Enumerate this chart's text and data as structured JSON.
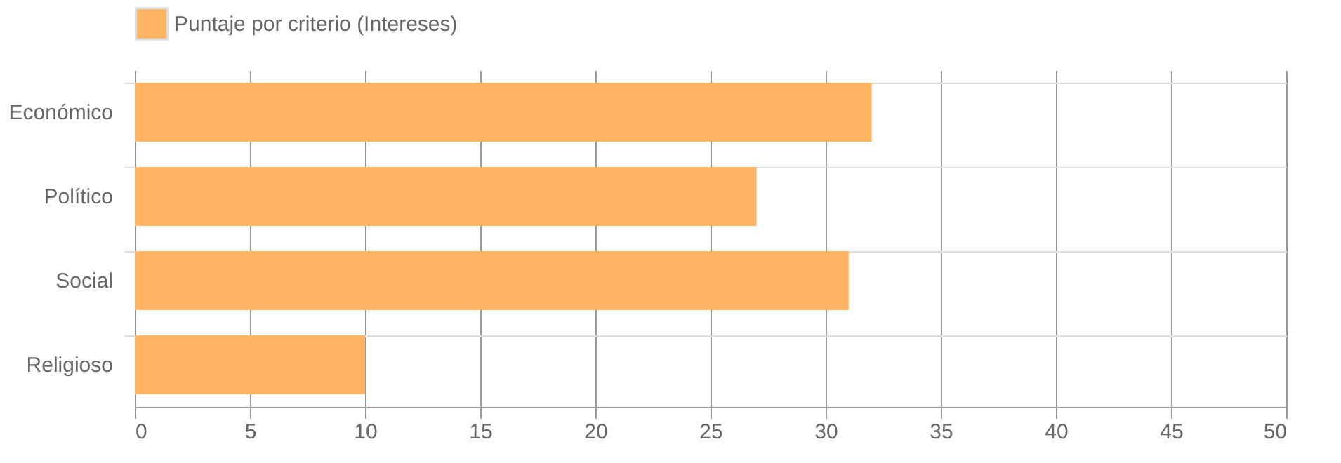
{
  "chart_data": {
    "type": "bar",
    "orientation": "horizontal",
    "categories": [
      "Económico",
      "Político",
      "Social",
      "Religioso"
    ],
    "series": [
      {
        "name": "Puntaje por criterio (Intereses)",
        "color": "#ffb563",
        "values": [
          32,
          27,
          31,
          10
        ]
      }
    ],
    "xlim": [
      0,
      50
    ],
    "xticks": [
      0,
      5,
      10,
      15,
      20,
      25,
      30,
      35,
      40,
      45,
      50
    ],
    "grid": true,
    "legend": "top"
  }
}
